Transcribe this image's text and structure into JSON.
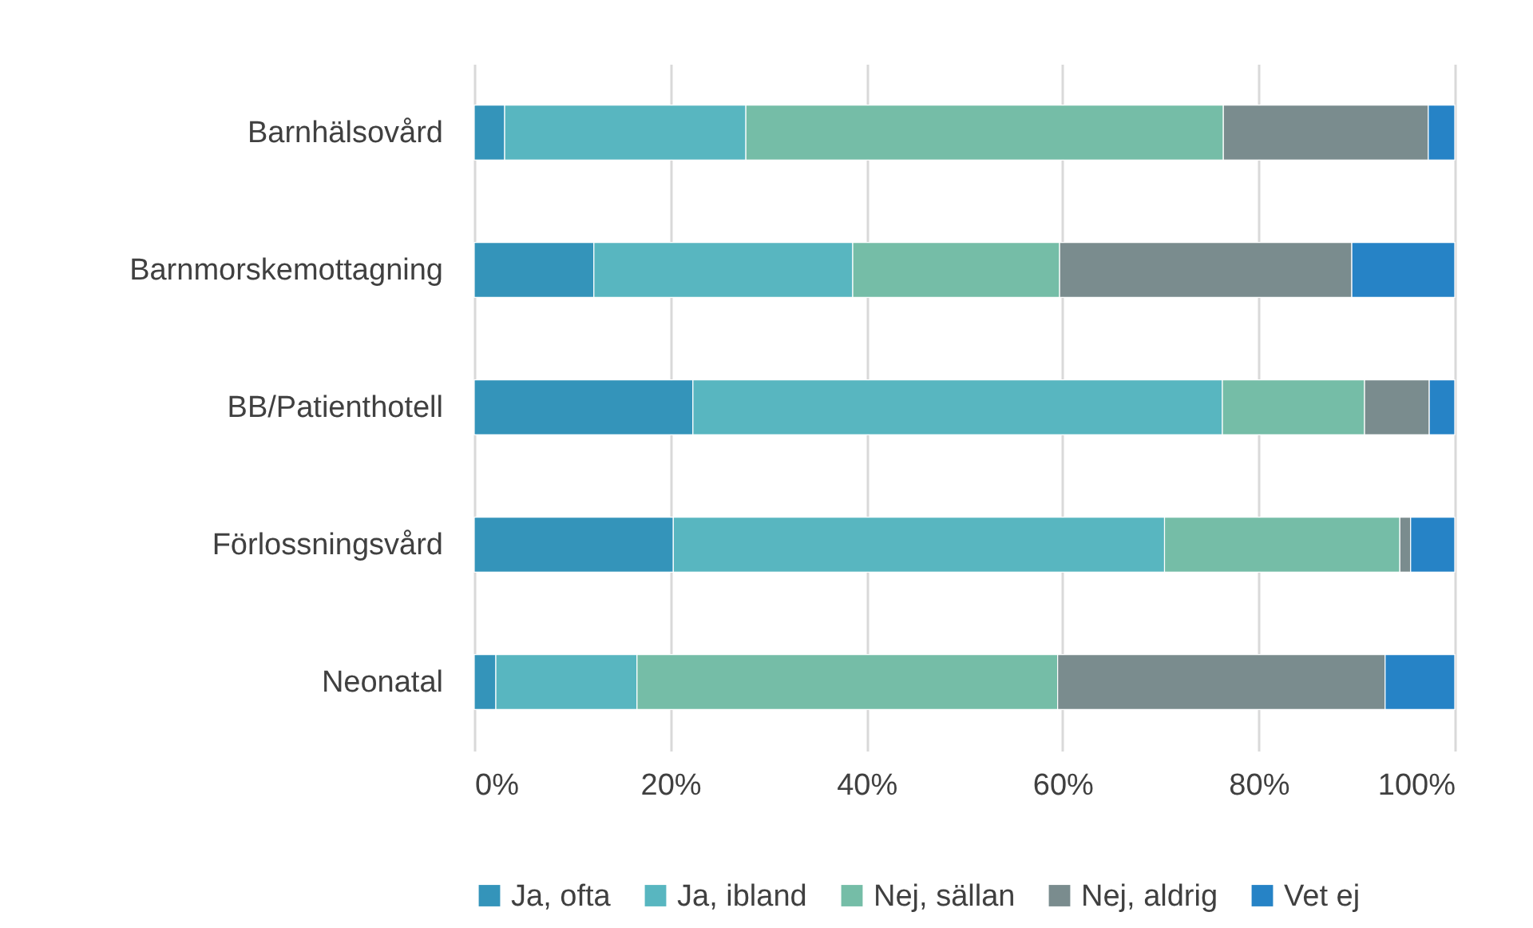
{
  "chart_data": {
    "type": "bar",
    "orientation": "horizontal",
    "stacked": true,
    "categories": [
      "Barnhälsovård",
      "Barnmorskemottagning",
      "BB/Patienthotell",
      "Förlossningsvård",
      "Neonatal"
    ],
    "series": [
      {
        "name": "Ja, ofta",
        "color": "#3494ba",
        "values": [
          3.1,
          12.2,
          22.3,
          20.3,
          2.2
        ]
      },
      {
        "name": "Ja, ibland",
        "color": "#58b6c0",
        "values": [
          24.6,
          26.4,
          54.0,
          50.1,
          14.4
        ]
      },
      {
        "name": "Nej, sällan",
        "color": "#75bda7",
        "values": [
          48.7,
          21.1,
          14.5,
          24.0,
          42.9
        ]
      },
      {
        "name": "Nej, aldrig",
        "color": "#7a8c8e",
        "values": [
          20.9,
          29.8,
          6.6,
          1.1,
          33.4
        ]
      },
      {
        "name": "Vet ej",
        "color": "#2683c6",
        "values": [
          2.7,
          10.5,
          2.6,
          4.5,
          7.1
        ]
      }
    ],
    "xlim": [
      0,
      100
    ],
    "xticks": [
      {
        "value": 0,
        "label": "0%"
      },
      {
        "value": 20,
        "label": "20%"
      },
      {
        "value": 40,
        "label": "40%"
      },
      {
        "value": 60,
        "label": "60%"
      },
      {
        "value": 80,
        "label": "80%"
      },
      {
        "value": 100,
        "label": "100%"
      }
    ],
    "grid": "x",
    "legend": "bottom"
  }
}
